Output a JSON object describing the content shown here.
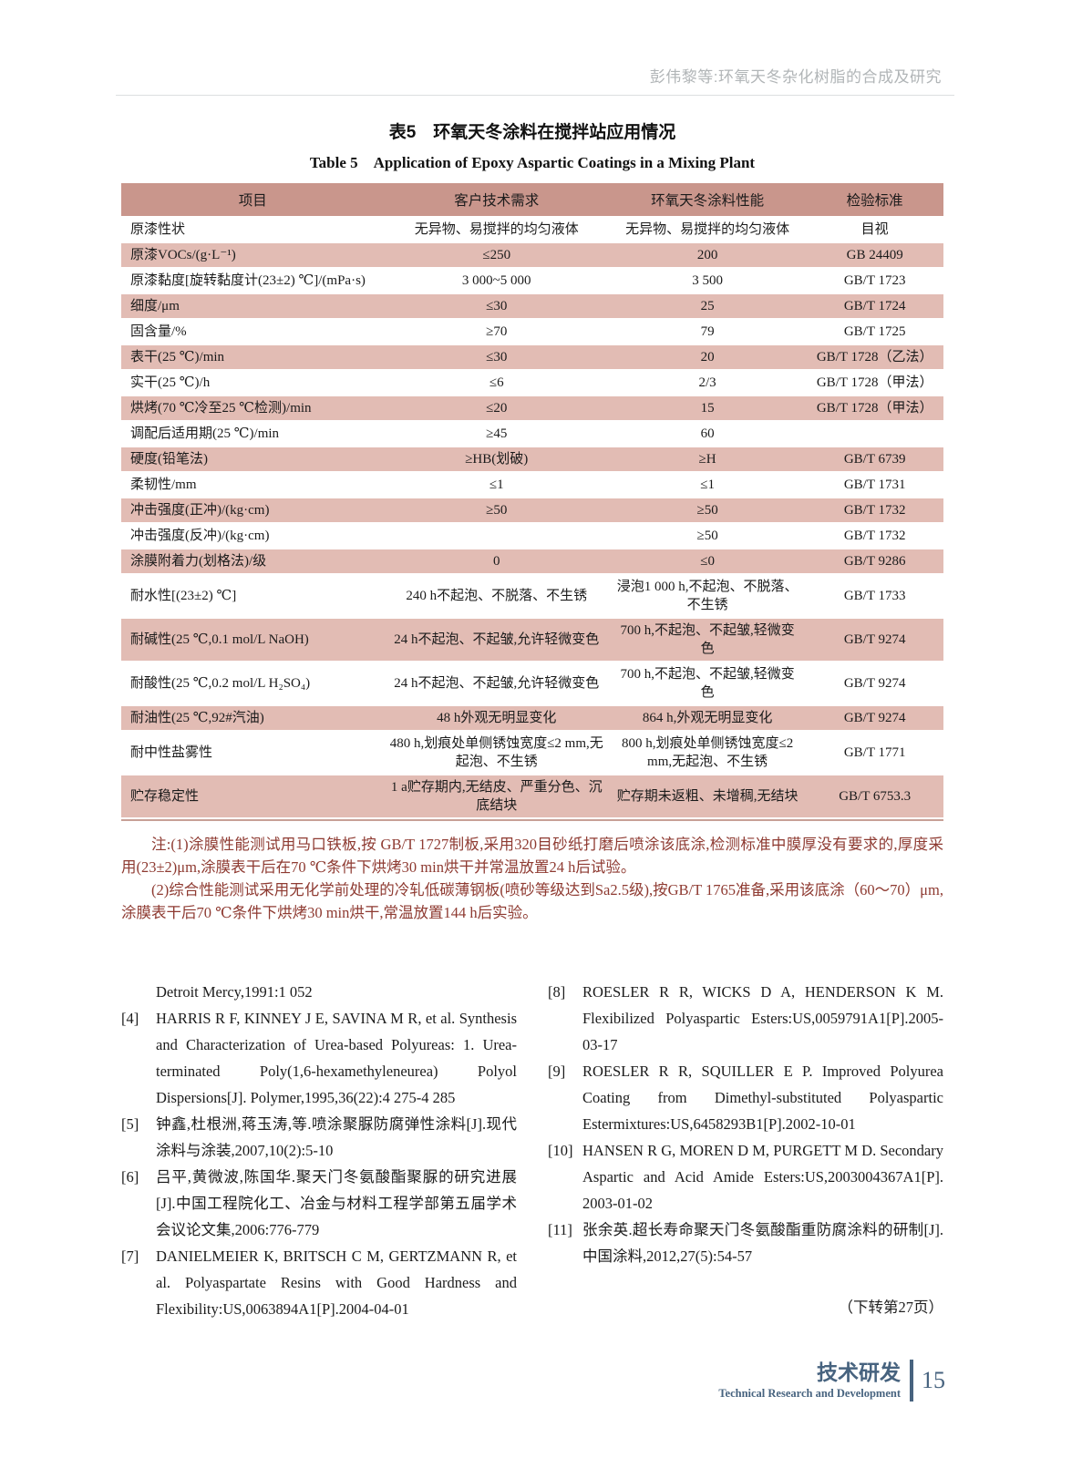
{
  "running_title": "彭伟黎等:环氧天冬杂化树脂的合成及研究",
  "table": {
    "title_zh": "表5　环氧天冬涂料在搅拌站应用情况",
    "title_en": "Table 5　Application of Epoxy Aspartic Coatings in a Mixing Plant",
    "headers": [
      "项目",
      "客户技术需求",
      "环氧天冬涂料性能",
      "检验标准"
    ],
    "rows": [
      [
        "原漆性状",
        "无异物、易搅拌的均匀液体",
        "无异物、易搅拌的均匀液体",
        "目视"
      ],
      [
        "原漆VOCs/(g·L⁻¹)",
        "≤250",
        "200",
        "GB 24409"
      ],
      [
        "原漆黏度[旋转黏度计(23±2) ℃]/(mPa·s)",
        "3 000~5 000",
        "3 500",
        "GB/T 1723"
      ],
      [
        "细度/μm",
        "≤30",
        "25",
        "GB/T 1724"
      ],
      [
        "固含量/%",
        "≥70",
        "79",
        "GB/T 1725"
      ],
      [
        "表干(25 ℃)/min",
        "≤30",
        "20",
        "GB/T 1728（乙法）"
      ],
      [
        "实干(25 ℃)/h",
        "≤6",
        "2/3",
        "GB/T 1728（甲法）"
      ],
      [
        "烘烤(70 ℃冷至25 ℃检测)/min",
        "≤20",
        "15",
        "GB/T 1728（甲法）"
      ],
      [
        "调配后适用期(25 ℃)/min",
        "≥45",
        "60",
        ""
      ],
      [
        "硬度(铅笔法)",
        "≥HB(划破)",
        "≥H",
        "GB/T 6739"
      ],
      [
        "柔韧性/mm",
        "≤1",
        "≤1",
        "GB/T 1731"
      ],
      [
        "冲击强度(正冲)/(kg·cm)",
        "≥50",
        "≥50",
        "GB/T 1732"
      ],
      [
        "冲击强度(反冲)/(kg·cm)",
        "",
        "≥50",
        "GB/T 1732"
      ],
      [
        "涂膜附着力(划格法)/级",
        "0",
        "≤0",
        "GB/T 9286"
      ],
      [
        "耐水性[(23±2) ℃]",
        "240 h不起泡、不脱落、不生锈",
        "浸泡1 000 h,不起泡、不脱落、不生锈",
        "GB/T 1733"
      ],
      [
        "耐碱性(25 ℃,0.1 mol/L NaOH)",
        "24 h不起泡、不起皱,允许轻微变色",
        "700 h,不起泡、不起皱,轻微变色",
        "GB/T 9274"
      ],
      [
        "耐酸性(25 ℃,0.2 mol/L H₂SO₄)",
        "24 h不起泡、不起皱,允许轻微变色",
        "700 h,不起泡、不起皱,轻微变色",
        "GB/T 9274"
      ],
      [
        "耐油性(25 ℃,92#汽油)",
        "48 h外观无明显变化",
        "864 h,外观无明显变化",
        "GB/T 9274"
      ],
      [
        "耐中性盐雾性",
        "480 h,划痕处单侧锈蚀宽度≤2 mm,无起泡、不生锈",
        "800 h,划痕处单侧锈蚀宽度≤2 mm,无起泡、不生锈",
        "GB/T 1771"
      ],
      [
        "贮存稳定性",
        "1 a贮存期内,无结皮、严重分色、沉底结块",
        "贮存期未返粗、未增稠,无结块",
        "GB/T 6753.3"
      ]
    ]
  },
  "notes": {
    "para1": "注:(1)涂膜性能测试用马口铁板,按 GB/T 1727制板,采用320目砂纸打磨后喷涂该底涂,检测标准中膜厚没有要求的,厚度采用(23±2)μm,涂膜表干后在70 ℃条件下烘烤30 min烘干并常温放置24 h后试验。",
    "para2": "(2)综合性能测试采用无化学前处理的冷轧低碳薄钢板(喷砂等级达到Sa2.5级),按GB/T 1765准备,采用该底涂（60～70）μm,涂膜表干后70 ℃条件下烘烤30 min烘干,常温放置144 h后实验。"
  },
  "references": {
    "left": [
      {
        "label": "",
        "text": "Detroit Mercy,1991:1 052"
      },
      {
        "label": "[4]",
        "text": "HARRIS R F, KINNEY J E, SAVINA M R, et al. Synthesis and Characterization of Urea-based Polyureas: 1. Urea-terminated Poly(1,6-hexamethyleneurea) Polyol Dispersions[J]. Polymer,1995,36(22):4 275-4 285"
      },
      {
        "label": "[5]",
        "text": "钟鑫,杜根洲,蒋玉涛,等.喷涂聚脲防腐弹性涂料[J].现代涂料与涂装,2007,10(2):5-10"
      },
      {
        "label": "[6]",
        "text": "吕平,黄微波,陈国华.聚天门冬氨酸酯聚脲的研究进展[J].中国工程院化工、冶金与材料工程学部第五届学术会议论文集,2006:776-779"
      },
      {
        "label": "[7]",
        "text": "DANIELMEIER K, BRITSCH C M, GERTZMANN R, et al. Polyaspartate Resins with Good Hardness and Flexibility:US,0063894A1[P].2004-04-01"
      }
    ],
    "right": [
      {
        "label": "[8]",
        "text": "ROESLER R R, WICKS D A, HENDERSON K M. Flexibilized Polyaspartic Esters:US,0059791A1[P].2005-03-17"
      },
      {
        "label": "[9]",
        "text": "ROESLER R R, SQUILLER E P. Improved Polyurea Coating from Dimethyl-substituted Polyaspartic Estermixtures:US,6458293B1[P].2002-10-01"
      },
      {
        "label": "[10]",
        "text": "HANSEN R G, MOREN D M, PURGETT M D. Secondary Aspartic and Acid Amide Esters:US,2003004367A1[P]. 2003-01-02"
      },
      {
        "label": "[11]",
        "text": "张余英.超长寿命聚天门冬氨酸酯重防腐涂料的研制[J].中国涂料,2012,27(5):54-57"
      }
    ],
    "continuation": "（下转第27页）"
  },
  "footer": {
    "section_zh": "技术研发",
    "section_en": "Technical Research and Development",
    "page_number": "15"
  },
  "colors": {
    "header_row": "#c9968c",
    "alt_row": "#e2bcb4",
    "note_text": "#8e3a31",
    "footer_accent": "#47637f",
    "running_head_gray": "#b1b5b7"
  }
}
